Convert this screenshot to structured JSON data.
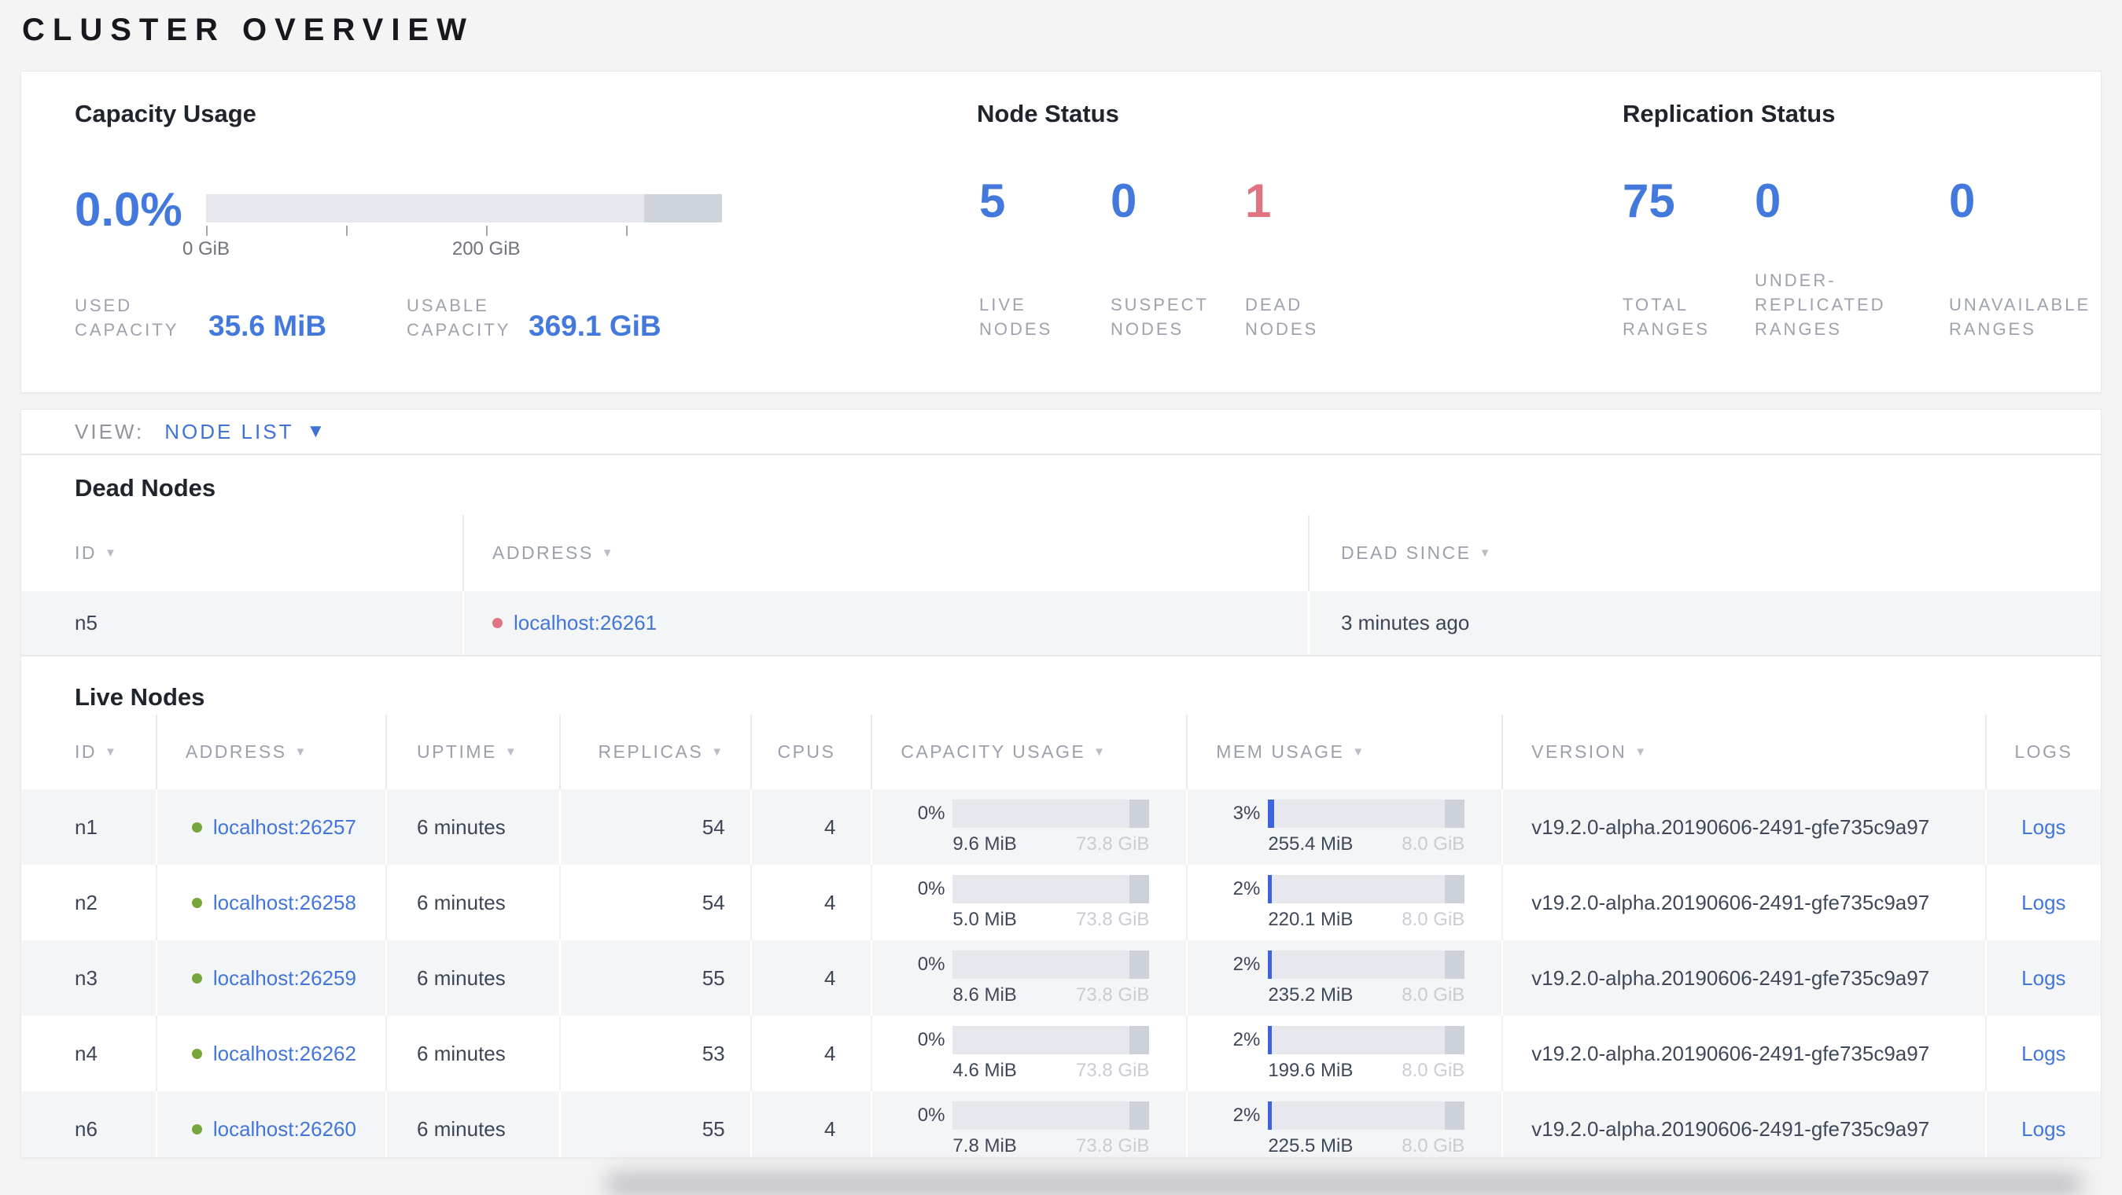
{
  "page": {
    "title": "CLUSTER OVERVIEW"
  },
  "colors": {
    "accent_blue": "#4379dd",
    "danger_red": "#e0737f",
    "link_blue": "#4277d9",
    "live_dot_green": "#76a63a",
    "dead_dot_red": "#df7580",
    "bar_fill_blue": "#3f63dd"
  },
  "summary": {
    "capacity": {
      "title": "Capacity Usage",
      "percent": "0.0%",
      "percent_value": 0.0,
      "axis_ticks": [
        "0 GiB",
        "200 GiB"
      ],
      "used": {
        "lines": [
          "USED",
          "CAPACITY"
        ],
        "value": "35.6 MiB"
      },
      "usable": {
        "lines": [
          "USABLE",
          "CAPACITY"
        ],
        "value": "369.1 GiB"
      }
    },
    "node_status": {
      "title": "Node Status",
      "stats": [
        {
          "value": "5",
          "lines": [
            "LIVE",
            "NODES"
          ]
        },
        {
          "value": "0",
          "lines": [
            "SUSPECT",
            "NODES"
          ]
        },
        {
          "value": "1",
          "lines": [
            "DEAD",
            "NODES"
          ]
        }
      ]
    },
    "replication": {
      "title": "Replication Status",
      "stats": [
        {
          "value": "75",
          "lines": [
            "TOTAL",
            "RANGES"
          ]
        },
        {
          "value": "0",
          "lines": [
            "UNDER-",
            "REPLICATED",
            "RANGES"
          ]
        },
        {
          "value": "0",
          "lines": [
            "UNAVAILABLE",
            "RANGES"
          ]
        }
      ]
    }
  },
  "view": {
    "label": "VIEW:",
    "selected": "NODE LIST"
  },
  "dead_nodes": {
    "title": "Dead Nodes",
    "headers": [
      "ID",
      "ADDRESS",
      "DEAD SINCE"
    ],
    "rows": [
      {
        "id": "n5",
        "address": "localhost:26261",
        "dead_since": "3 minutes ago"
      }
    ]
  },
  "live_nodes": {
    "title": "Live Nodes",
    "headers": [
      "ID",
      "ADDRESS",
      "UPTIME",
      "REPLICAS",
      "CPUS",
      "CAPACITY USAGE",
      "MEM USAGE",
      "VERSION",
      "LOGS"
    ],
    "logs_label": "Logs",
    "rows": [
      {
        "id": "n1",
        "address": "localhost:26257",
        "uptime": "6 minutes",
        "replicas": "54",
        "cpus": "4",
        "capacity": {
          "percent": "0%",
          "pct": 0,
          "used": "9.6 MiB",
          "total": "73.8 GiB"
        },
        "memory": {
          "percent": "3%",
          "pct": 3,
          "used": "255.4 MiB",
          "total": "8.0 GiB"
        },
        "version": "v19.2.0-alpha.20190606-2491-gfe735c9a97"
      },
      {
        "id": "n2",
        "address": "localhost:26258",
        "uptime": "6 minutes",
        "replicas": "54",
        "cpus": "4",
        "capacity": {
          "percent": "0%",
          "pct": 0,
          "used": "5.0 MiB",
          "total": "73.8 GiB"
        },
        "memory": {
          "percent": "2%",
          "pct": 2,
          "used": "220.1 MiB",
          "total": "8.0 GiB"
        },
        "version": "v19.2.0-alpha.20190606-2491-gfe735c9a97"
      },
      {
        "id": "n3",
        "address": "localhost:26259",
        "uptime": "6 minutes",
        "replicas": "55",
        "cpus": "4",
        "capacity": {
          "percent": "0%",
          "pct": 0,
          "used": "8.6 MiB",
          "total": "73.8 GiB"
        },
        "memory": {
          "percent": "2%",
          "pct": 2,
          "used": "235.2 MiB",
          "total": "8.0 GiB"
        },
        "version": "v19.2.0-alpha.20190606-2491-gfe735c9a97"
      },
      {
        "id": "n4",
        "address": "localhost:26262",
        "uptime": "6 minutes",
        "replicas": "53",
        "cpus": "4",
        "capacity": {
          "percent": "0%",
          "pct": 0,
          "used": "4.6 MiB",
          "total": "73.8 GiB"
        },
        "memory": {
          "percent": "2%",
          "pct": 2,
          "used": "199.6 MiB",
          "total": "8.0 GiB"
        },
        "version": "v19.2.0-alpha.20190606-2491-gfe735c9a97"
      },
      {
        "id": "n6",
        "address": "localhost:26260",
        "uptime": "6 minutes",
        "replicas": "55",
        "cpus": "4",
        "capacity": {
          "percent": "0%",
          "pct": 0,
          "used": "7.8 MiB",
          "total": "73.8 GiB"
        },
        "memory": {
          "percent": "2%",
          "pct": 2,
          "used": "225.5 MiB",
          "total": "8.0 GiB"
        },
        "version": "v19.2.0-alpha.20190606-2491-gfe735c9a97"
      }
    ]
  }
}
